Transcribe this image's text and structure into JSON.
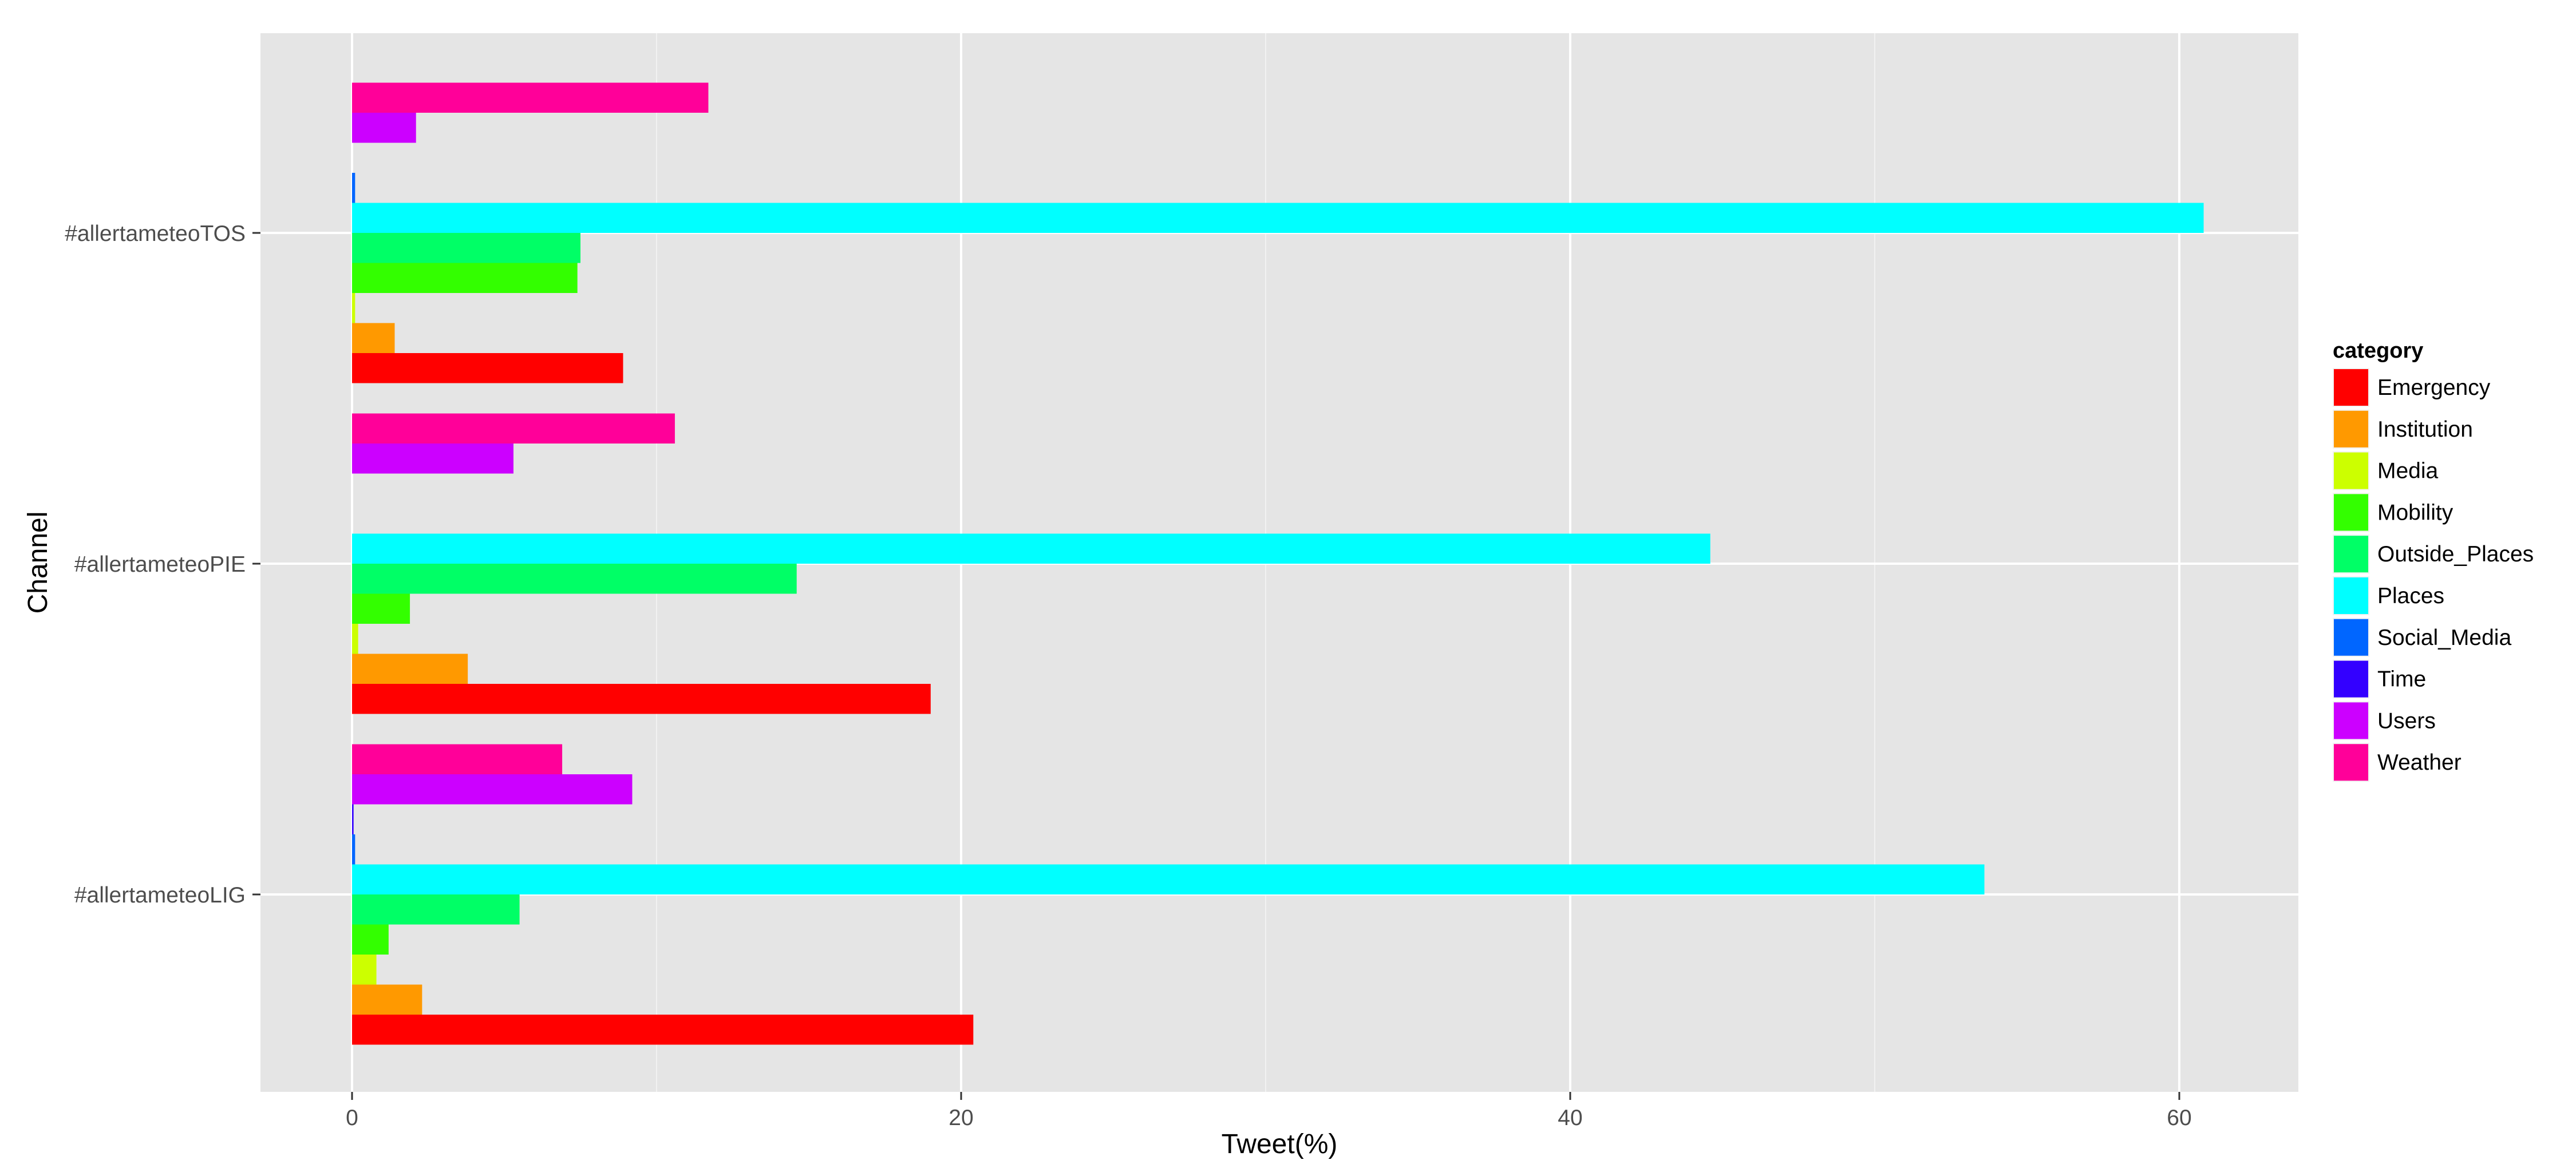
{
  "chart_data": {
    "type": "bar",
    "orientation": "horizontal",
    "xlabel": "Tweet(%)",
    "ylabel": "Channel",
    "xlim": [
      -1.5,
      64
    ],
    "xticks": [
      0,
      20,
      40,
      60
    ],
    "grid": true,
    "legend": {
      "title": "category",
      "position": "right"
    },
    "categories": [
      "#allertameteoLIG",
      "#allertameteoPIE",
      "#allertameteoTOS"
    ],
    "series": [
      {
        "name": "Emergency",
        "color": "#FF0000",
        "values": [
          20.4,
          19.0,
          8.9
        ]
      },
      {
        "name": "Institution",
        "color": "#FF9900",
        "values": [
          2.3,
          3.8,
          1.4
        ]
      },
      {
        "name": "Media",
        "color": "#CCFF00",
        "values": [
          0.8,
          0.2,
          0.1
        ]
      },
      {
        "name": "Mobility",
        "color": "#33FF00",
        "values": [
          1.2,
          1.9,
          7.4
        ]
      },
      {
        "name": "Outside_Places",
        "color": "#00FF66",
        "values": [
          5.5,
          14.6,
          7.5
        ]
      },
      {
        "name": "Places",
        "color": "#00FFFF",
        "values": [
          53.6,
          44.6,
          60.8
        ]
      },
      {
        "name": "Social_Media",
        "color": "#0066FF",
        "values": [
          0.1,
          0.0,
          0.1
        ]
      },
      {
        "name": "Time",
        "color": "#3300FF",
        "values": [
          0.05,
          0.0,
          0.0
        ]
      },
      {
        "name": "Users",
        "color": "#CC00FF",
        "values": [
          9.2,
          5.3,
          2.1
        ]
      },
      {
        "name": "Weather",
        "color": "#FF0099",
        "values": [
          6.9,
          10.6,
          11.7
        ]
      }
    ]
  }
}
